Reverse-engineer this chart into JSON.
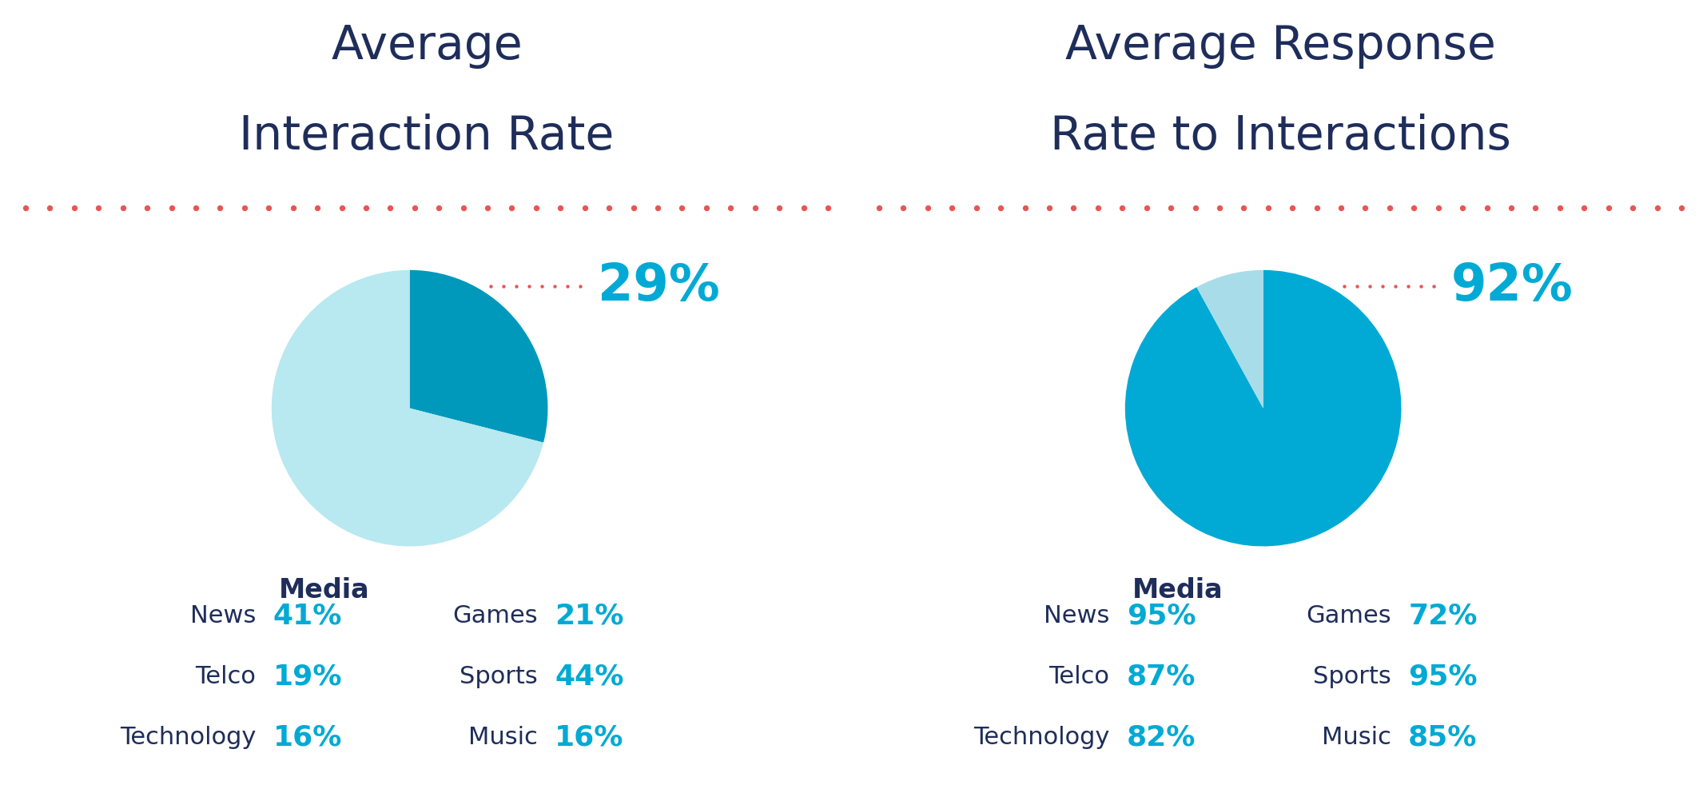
{
  "left_title_line1": "Average",
  "left_title_line2": "Interaction Rate",
  "right_title_line1": "Average Response",
  "right_title_line2": "Rate to Interactions",
  "title_color": "#1e2d5a",
  "title_fontsize": 42,
  "dotted_line_color": "#e85555",
  "chart_label": "Media",
  "chart_label_color": "#1e2d5a",
  "chart_label_fontsize": 24,
  "pie1_values": [
    29,
    71
  ],
  "pie1_colors": [
    "#0099bb",
    "#b8e8f0"
  ],
  "pie1_highlight": "29%",
  "pie2_values": [
    92,
    8
  ],
  "pie2_colors": [
    "#00aad4",
    "#a8dce8"
  ],
  "pie2_highlight": "92%",
  "highlight_color": "#00aad4",
  "highlight_fontsize": 46,
  "dotted_annotation_color": "#e85555",
  "left_stats": [
    [
      "News",
      "41%"
    ],
    [
      "Telco",
      "19%"
    ],
    [
      "Technology",
      "16%"
    ]
  ],
  "left_stats_right": [
    [
      "Games",
      "21%"
    ],
    [
      "Sports",
      "44%"
    ],
    [
      "Music",
      "16%"
    ]
  ],
  "right_stats": [
    [
      "News",
      "95%"
    ],
    [
      "Telco",
      "87%"
    ],
    [
      "Technology",
      "82%"
    ]
  ],
  "right_stats_right": [
    [
      "Games",
      "72%"
    ],
    [
      "Sports",
      "95%"
    ],
    [
      "Music",
      "85%"
    ]
  ],
  "stat_label_color": "#1e2d5a",
  "stat_value_color": "#00aad4",
  "stat_label_fontsize": 22,
  "stat_value_fontsize": 26,
  "background_color": "#ffffff"
}
